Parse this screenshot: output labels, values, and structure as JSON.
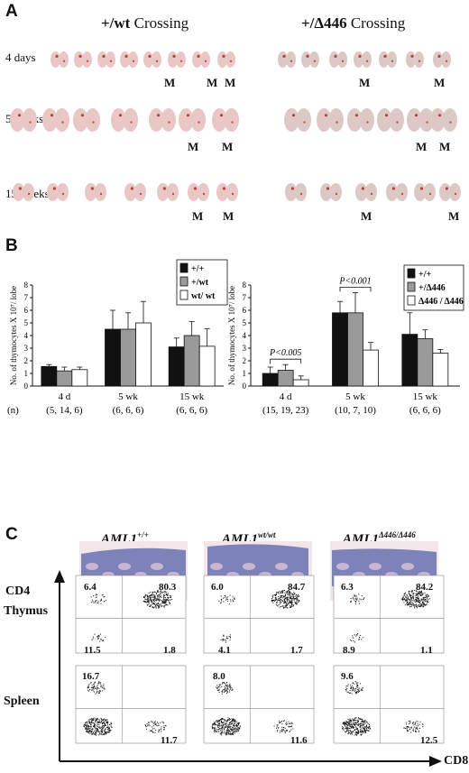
{
  "panelA": {
    "label": "A",
    "crossing_left_prefix": "+/wt",
    "crossing_left_suffix": "Crossing",
    "crossing_right_prefix": "+/Δ446",
    "crossing_right_suffix": "Crossing",
    "rows": [
      {
        "label": "4 days"
      },
      {
        "label": "5 weeks"
      },
      {
        "label": "15 weeks"
      }
    ],
    "marker": "M"
  },
  "panelB": {
    "label": "B",
    "ylabel": "No. of thymocytes X 10⁷/ lobe",
    "n_label": "(n)",
    "left": {
      "legend": [
        "+/+",
        "+/wt",
        "wt/ wt"
      ],
      "groups": [
        {
          "label": "4 d",
          "n": "(5, 14, 6)",
          "values": [
            1.55,
            1.2,
            1.3
          ],
          "errors": [
            0.15,
            0.3,
            0.2
          ]
        },
        {
          "label": "5 wk",
          "n": "(6, 6, 6)",
          "values": [
            4.5,
            4.5,
            5.0
          ],
          "errors": [
            1.5,
            1.3,
            1.7
          ]
        },
        {
          "label": "15 wk",
          "n": "(6, 6, 6)",
          "values": [
            3.1,
            4.0,
            3.15
          ],
          "errors": [
            0.7,
            1.1,
            1.4
          ]
        }
      ],
      "ylim": [
        0,
        8
      ],
      "yticks": [
        "0",
        "1",
        "2",
        "3",
        "4",
        "5",
        "6",
        "7",
        "8"
      ]
    },
    "right": {
      "legend": [
        "+/+",
        "+/Δ446",
        "Δ446 / Δ446"
      ],
      "groups": [
        {
          "label": "4 d",
          "n": "(15, 19, 23)",
          "values": [
            1.0,
            1.25,
            0.5
          ],
          "errors": [
            0.5,
            0.45,
            0.3
          ]
        },
        {
          "label": "5 wk",
          "n": "(10, 7, 10)",
          "values": [
            5.8,
            5.8,
            2.85
          ],
          "errors": [
            0.9,
            1.6,
            0.6
          ]
        },
        {
          "label": "15 wk",
          "n": "(6, 6, 6)",
          "values": [
            4.1,
            3.75,
            2.6
          ],
          "errors": [
            1.7,
            0.7,
            0.3
          ]
        }
      ],
      "ylim": [
        0,
        8
      ],
      "yticks": [
        "0",
        "1",
        "2",
        "3",
        "4",
        "5",
        "6",
        "7",
        "8"
      ],
      "pvalues": [
        {
          "group": 0,
          "text": "P<0.005"
        },
        {
          "group": 1,
          "text": "P<0.001"
        }
      ]
    },
    "colors": [
      "#111111",
      "#9a9a9a",
      "#ffffff"
    ]
  },
  "panelC": {
    "label": "C",
    "genotypes": [
      {
        "name": "AML1",
        "sup": "+/+"
      },
      {
        "name": "AML1",
        "sup": "wt/wt"
      },
      {
        "name": "AML1",
        "sup": "Δ446/Δ446"
      }
    ],
    "yaxis": "CD4",
    "xaxis": "CD8",
    "rows": [
      {
        "label": "Thymus",
        "plots": [
          {
            "ul": "6.4",
            "ur": "80.3",
            "ll": "11.5",
            "lr": "1.8"
          },
          {
            "ul": "6.0",
            "ur": "84.7",
            "ll": "4.1",
            "lr": "1.7"
          },
          {
            "ul": "6.3",
            "ur": "84.2",
            "ll": "8.9",
            "lr": "1.1"
          }
        ]
      },
      {
        "label": "Spleen",
        "plots": [
          {
            "ul": "16.7",
            "lr": "11.7"
          },
          {
            "ul": "8.0",
            "lr": "11.6"
          },
          {
            "ul": "9.6",
            "lr": "12.5"
          }
        ]
      }
    ]
  }
}
